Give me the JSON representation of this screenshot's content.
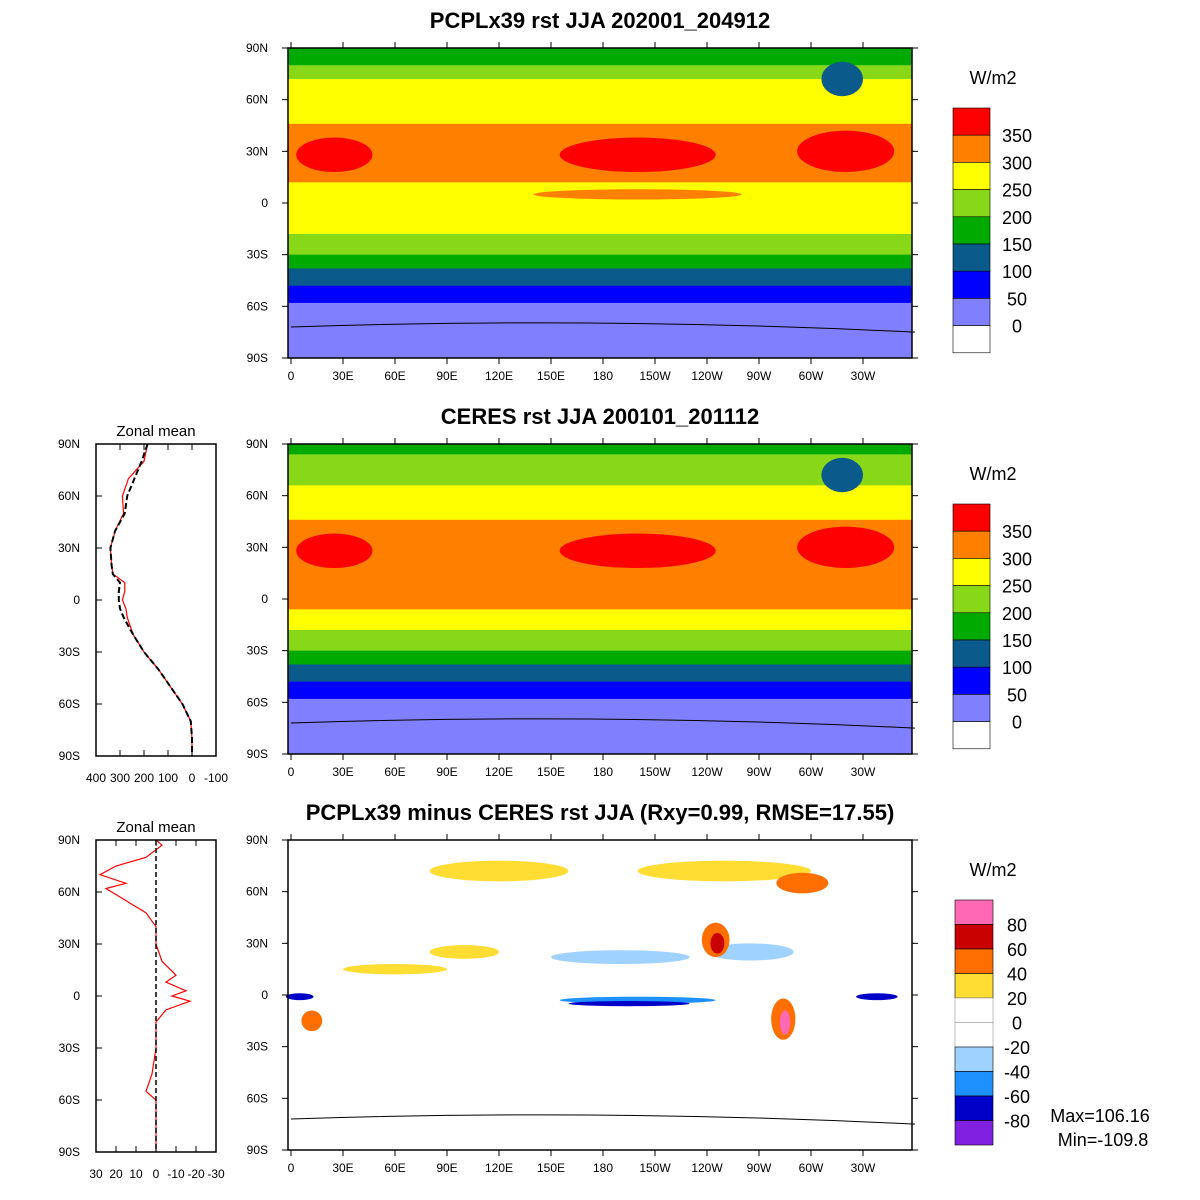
{
  "chart_data": [
    {
      "type": "heatmap",
      "title": "PCPLx39 rst JJA 202001_204912",
      "units": "W/m2",
      "levels": [
        "350",
        "300",
        "250",
        "200",
        "150",
        "100",
        "50",
        "0"
      ],
      "colors": [
        "#ff0000",
        "#ff8000",
        "#ffff00",
        "#88d818",
        "#00aa00",
        "#0a5a8c",
        "#0000ff",
        "#8080ff",
        "#ffffff"
      ]
    },
    {
      "type": "heatmap",
      "title": "CERES rst JJA 200101_201112",
      "units": "W/m2",
      "levels": [
        "350",
        "300",
        "250",
        "200",
        "150",
        "100",
        "50",
        "0"
      ],
      "colors": [
        "#ff0000",
        "#ff8000",
        "#ffff00",
        "#88d818",
        "#00aa00",
        "#0a5a8c",
        "#0000ff",
        "#8080ff",
        "#ffffff"
      ]
    },
    {
      "type": "heatmap",
      "title": "PCPLx39 minus CERES rst JJA (Rxy=0.99, RMSE=17.55)",
      "units": "W/m2",
      "levels": [
        "80",
        "60",
        "40",
        "20",
        "0",
        "-20",
        "-40",
        "-60",
        "-80"
      ],
      "colors": [
        "#ff69b4",
        "#c80000",
        "#ff6e00",
        "#ffdd33",
        "#ffffff",
        "#ffffff",
        "#a0d2ff",
        "#1e90ff",
        "#0000c8",
        "#8020e0"
      ],
      "max_label": "Max=106.16",
      "min_label": "Min=-109.8"
    },
    {
      "type": "line",
      "title": "Zonal mean",
      "xlim": [
        400,
        -100
      ],
      "xticks": [
        "400",
        "300",
        "200",
        "100",
        "0",
        "-100"
      ],
      "lat": [
        90,
        80,
        70,
        60,
        50,
        40,
        30,
        20,
        15,
        10,
        5,
        0,
        -5,
        -10,
        -20,
        -30,
        -40,
        -50,
        -60,
        -70,
        -80,
        -90
      ],
      "series": [
        {
          "name": "model",
          "color": "#ff0000",
          "values": [
            185,
            200,
            265,
            290,
            285,
            320,
            340,
            335,
            330,
            280,
            280,
            290,
            275,
            270,
            245,
            200,
            140,
            90,
            40,
            5,
            0,
            0
          ]
        },
        {
          "name": "obs",
          "color": "#000000",
          "values": [
            185,
            210,
            240,
            270,
            280,
            320,
            340,
            335,
            330,
            300,
            305,
            305,
            300,
            285,
            245,
            200,
            140,
            90,
            40,
            5,
            0,
            0
          ]
        }
      ]
    },
    {
      "type": "line",
      "title": "Zonal mean",
      "xlim": [
        30,
        -30
      ],
      "xticks": [
        "30",
        "20",
        "10",
        "0",
        "-10",
        "-20",
        "-30"
      ],
      "lat": [
        90,
        87,
        80,
        75,
        70,
        65,
        62,
        55,
        48,
        40,
        30,
        20,
        12,
        8,
        3,
        0,
        -3,
        -8,
        -15,
        -30,
        -45,
        -55,
        -60,
        -90
      ],
      "series": [
        {
          "name": "difference",
          "color": "#ff0000",
          "values": [
            0,
            -3,
            5,
            20,
            28,
            15,
            25,
            15,
            5,
            0,
            0,
            -3,
            -10,
            -5,
            -15,
            -8,
            -17,
            -5,
            0,
            0,
            2,
            5,
            0,
            0
          ]
        }
      ]
    }
  ],
  "lat_labels": [
    "90N",
    "60N",
    "30N",
    "0",
    "30S",
    "60S",
    "90S"
  ],
  "lon_labels": [
    "0",
    "30E",
    "60E",
    "90E",
    "120E",
    "150E",
    "180",
    "150W",
    "120W",
    "90W",
    "60W",
    "30W"
  ]
}
